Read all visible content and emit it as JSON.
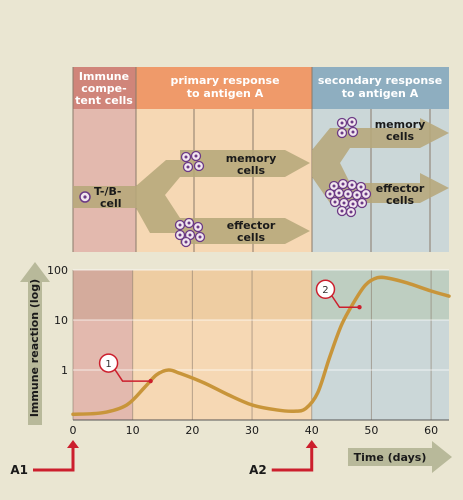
{
  "colors": {
    "background": "#eae6d2",
    "col_immune": "#e3b9ae",
    "col_immune_dark": "#c8a08e",
    "col_primary": "#f6d8b4",
    "col_primary_dark": "#e7c494",
    "col_secondary": "#cbd7d8",
    "col_secondary_dark": "#b5c7ae",
    "header_immune": "#d0857a",
    "header_primary": "#ef9a6a",
    "header_secondary": "#8eaec0",
    "flow_arrow": "#b6a77a",
    "curve": "#c8953a",
    "marker_red": "#cc1f2d",
    "cell_purple": "#6c3a86"
  },
  "diagram": {
    "headers": {
      "immune": [
        "Immune",
        "compe-",
        "tent cells"
      ],
      "primary": [
        "primary response",
        "to antigen A"
      ],
      "secondary": [
        "secondary response",
        "to antigen A"
      ]
    },
    "labels": {
      "tb_cell": [
        "T-/B-",
        "cell"
      ],
      "primary_memory": [
        "memory",
        "cells"
      ],
      "primary_effector": [
        "effector",
        "cells"
      ],
      "secondary_memory": [
        "memory",
        "cells"
      ],
      "secondary_effector": [
        "effector",
        "cells"
      ]
    }
  },
  "chart_data": {
    "type": "line",
    "title": "",
    "xlabel": "Time (days)",
    "ylabel": "Immune reaction (log)",
    "y_scale": "log",
    "xlim": [
      0,
      63
    ],
    "ylim": [
      0.1,
      100
    ],
    "x_ticks": [
      "0",
      "10",
      "20",
      "30",
      "40",
      "50",
      "60"
    ],
    "y_ticks": [
      "1",
      "10",
      "100"
    ],
    "grid": true,
    "series": [
      {
        "x": [
          0,
          5,
          9,
          12,
          14,
          16,
          18,
          22,
          26,
          30,
          34,
          37,
          39,
          41,
          43,
          45,
          47,
          49,
          51,
          53,
          56,
          60,
          63
        ],
        "y": [
          0.13,
          0.14,
          0.2,
          0.45,
          0.8,
          1.0,
          0.85,
          0.55,
          0.32,
          0.2,
          0.16,
          0.15,
          0.17,
          0.35,
          1.8,
          8,
          22,
          50,
          70,
          68,
          55,
          38,
          30
        ]
      }
    ],
    "annotations": [
      {
        "label": "1",
        "x": 13,
        "y": 0.6
      },
      {
        "label": "2",
        "x": 48,
        "y": 18
      }
    ],
    "events": [
      {
        "label": "A1",
        "x": 0
      },
      {
        "label": "A2",
        "x": 40
      }
    ]
  }
}
